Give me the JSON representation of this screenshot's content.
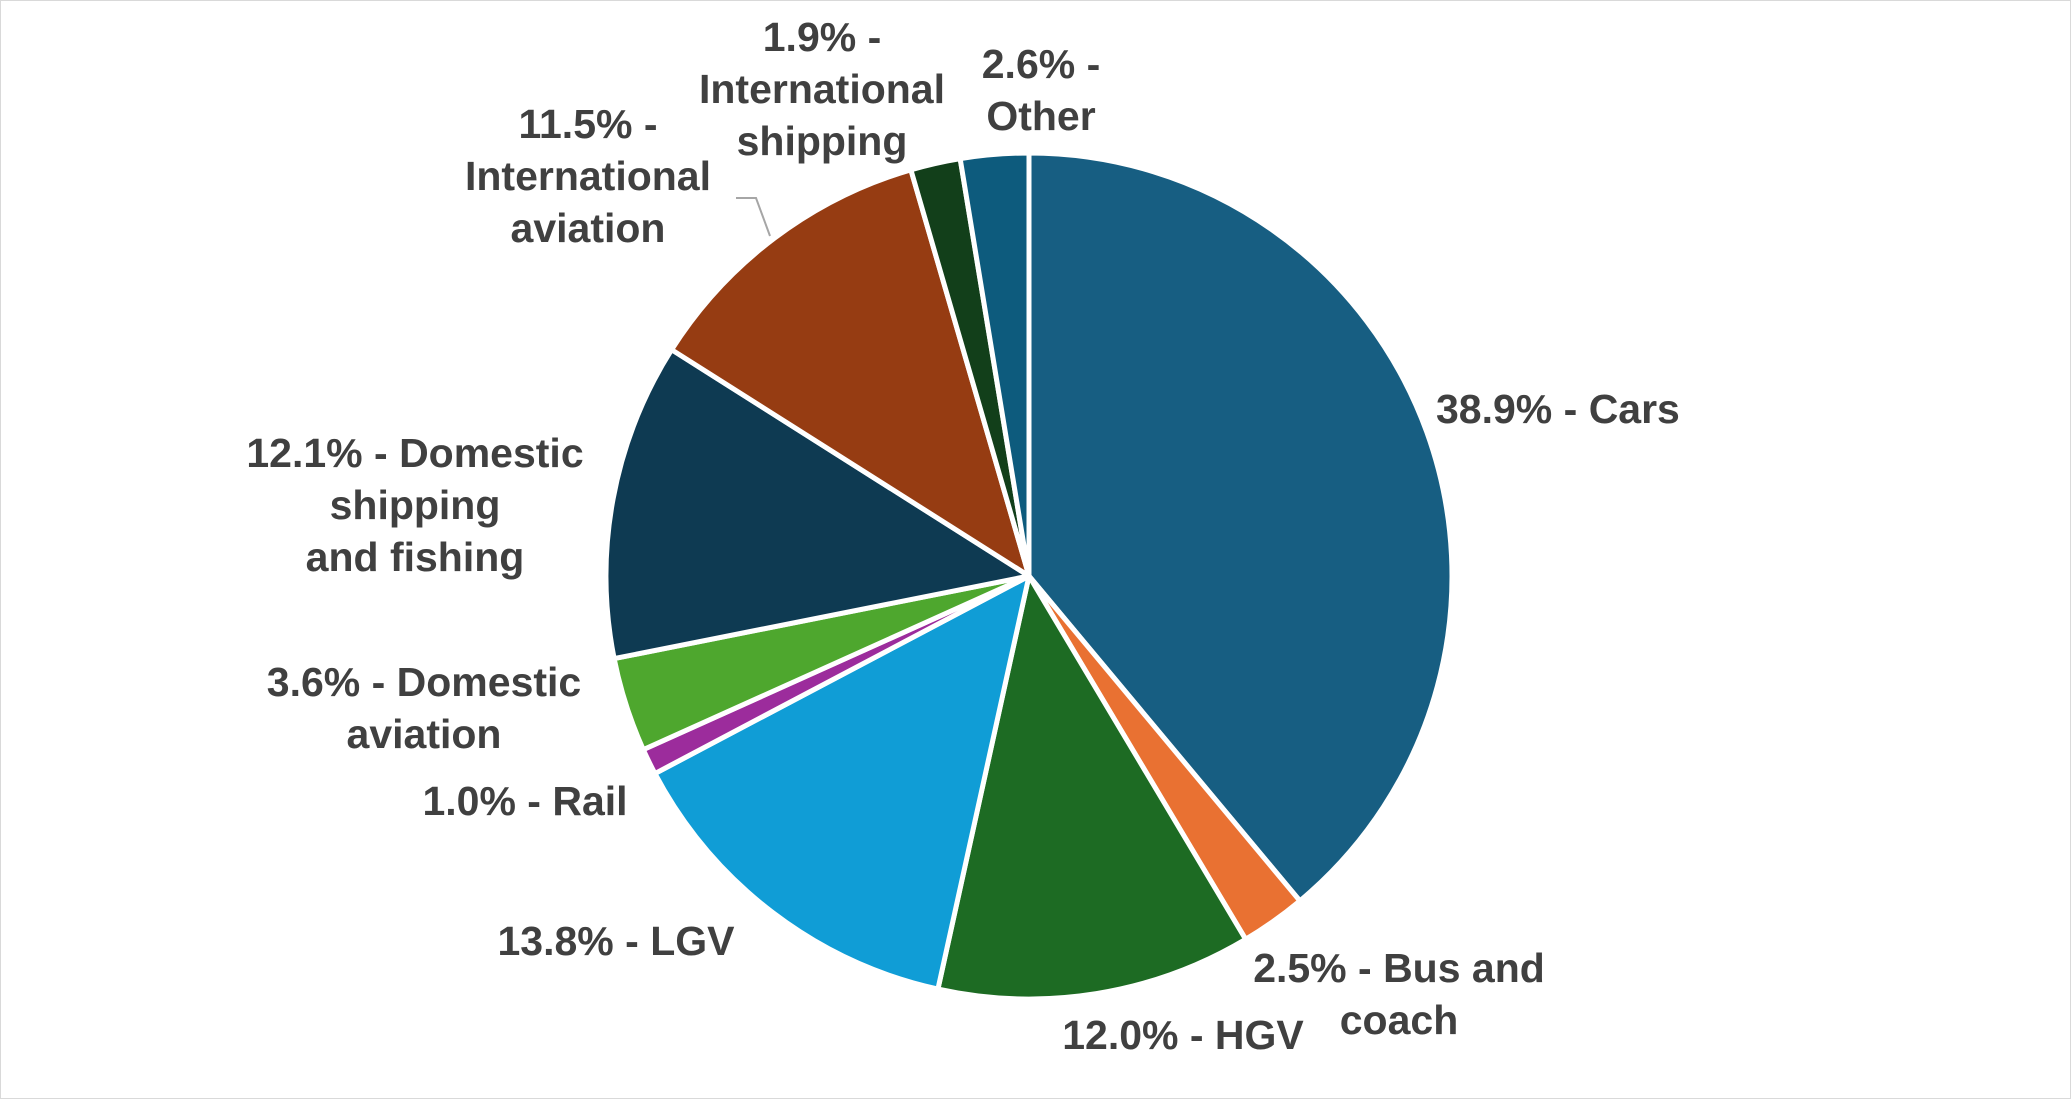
{
  "chart_data": {
    "type": "pie",
    "title": "",
    "slices": [
      {
        "label_lines": [
          "38.9% - Cars"
        ],
        "value": 38.9,
        "color": "#175e82"
      },
      {
        "label_lines": [
          "2.5% - Bus and",
          "coach"
        ],
        "value": 2.5,
        "color": "#e97132"
      },
      {
        "label_lines": [
          "12.0% - HGV"
        ],
        "value": 12.0,
        "color": "#1d6b23"
      },
      {
        "label_lines": [
          "13.8% - LGV"
        ],
        "value": 13.8,
        "color": "#109dd6"
      },
      {
        "label_lines": [
          "1.0% - Rail"
        ],
        "value": 1.0,
        "color": "#9c2c9c"
      },
      {
        "label_lines": [
          "3.6% - Domestic",
          "aviation"
        ],
        "value": 3.6,
        "color": "#4ea72e"
      },
      {
        "label_lines": [
          "12.1% - Domestic",
          "shipping",
          "and fishing"
        ],
        "value": 12.1,
        "color": "#0e3a52"
      },
      {
        "label_lines": [
          "11.5% -",
          "International",
          "aviation"
        ],
        "value": 11.5,
        "color": "#963c12"
      },
      {
        "label_lines": [
          "1.9% -",
          "International",
          "shipping"
        ],
        "value": 1.9,
        "color": "#123f1a"
      },
      {
        "label_lines": [
          "2.6% -",
          "Other"
        ],
        "value": 2.6,
        "color": "#0d5b7d"
      }
    ],
    "start_angle": "12 o'clock",
    "direction": "clockwise",
    "legend": "none"
  }
}
